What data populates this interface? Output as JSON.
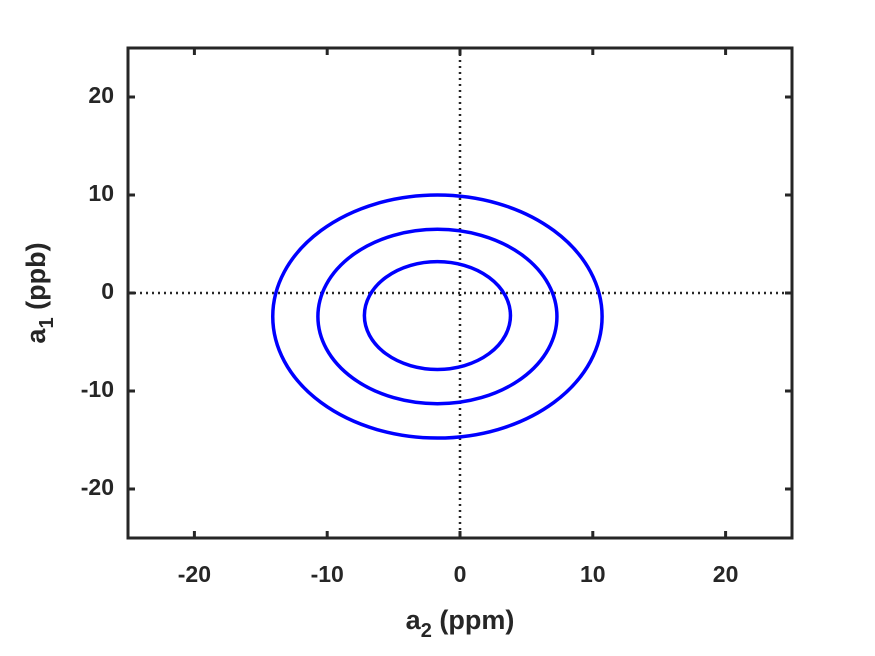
{
  "chart_data": {
    "type": "contour",
    "xlabel": {
      "text": "a",
      "sub": "2",
      "unit": "(ppm)"
    },
    "ylabel": {
      "text": "a",
      "sub": "1",
      "unit": "(ppb)"
    },
    "xlim": [
      -25,
      25
    ],
    "ylim": [
      -25,
      25
    ],
    "xticks": [
      -20,
      -10,
      0,
      10,
      20
    ],
    "yticks": [
      -20,
      -10,
      0,
      10,
      20
    ],
    "reference_lines": {
      "x": 0,
      "y": 0
    },
    "color": "#0000ff",
    "ellipses": [
      {
        "cx": -1.7,
        "cy": -2.4,
        "rx": 12.4,
        "ry": 12.4
      },
      {
        "cx": -1.7,
        "cy": -2.4,
        "rx": 9.0,
        "ry": 8.9
      },
      {
        "cx": -1.7,
        "cy": -2.3,
        "rx": 5.5,
        "ry": 5.5
      }
    ]
  }
}
